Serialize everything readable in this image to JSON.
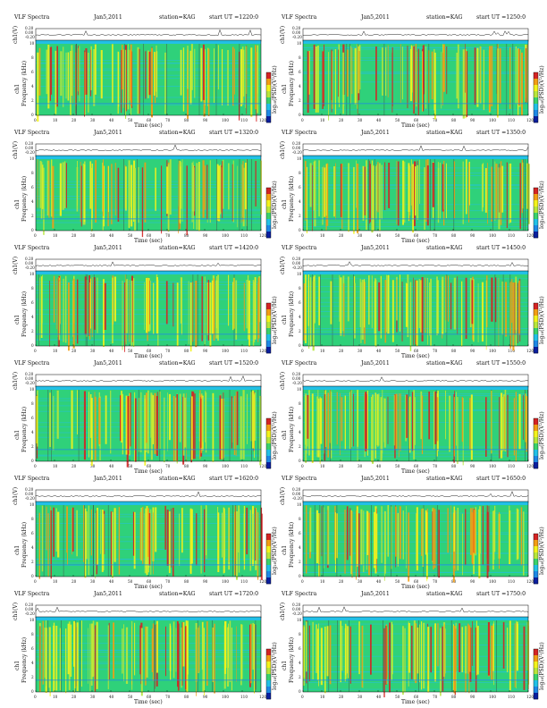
{
  "figure": {
    "title": "VLF Spectra",
    "date": "Jan5,2011",
    "station": "station=KAG",
    "start_prefix": "start  UT =",
    "top_ylabel": "ch1(V)",
    "spec_ylabel_1": "ch1",
    "spec_ylabel_2": "Frequency (kHz)",
    "xlabel": "Time (sec)",
    "colorbar_label": "log₁₀(PSD)(V²/Hz)",
    "top_ticks": [
      "0.20",
      "0.00",
      "-0.20"
    ],
    "freq_ticks": [
      "10",
      "8",
      "6",
      "4",
      "2",
      "0"
    ]
  },
  "panels": [
    {
      "start_ut": "1220:0"
    },
    {
      "start_ut": "1250:0"
    },
    {
      "start_ut": "1320:0"
    },
    {
      "start_ut": "1350:0"
    },
    {
      "start_ut": "1420:0"
    },
    {
      "start_ut": "1450:0"
    },
    {
      "start_ut": "1520:0"
    },
    {
      "start_ut": "1550:0"
    },
    {
      "start_ut": "1620:0"
    },
    {
      "start_ut": "1650:0"
    },
    {
      "start_ut": "1720:0"
    },
    {
      "start_ut": "1750:0"
    }
  ],
  "chart_data": {
    "type": "heatmap",
    "x_range": [
      0,
      120
    ],
    "x_ticks": [
      "0",
      "10",
      "20",
      "30",
      "40",
      "50",
      "60",
      "70",
      "80",
      "90",
      "100",
      "110",
      "120"
    ],
    "y_range_khz": [
      0,
      10
    ],
    "top_trace_range_v": [
      -0.2,
      0.2
    ],
    "colormap": [
      "#0b1f9e",
      "#1e88e5",
      "#22c0e6",
      "#3ad16b",
      "#b7e53b",
      "#f2f21c",
      "#f29d14",
      "#d42424"
    ],
    "background_color": "#2fd17a",
    "grid": false
  }
}
